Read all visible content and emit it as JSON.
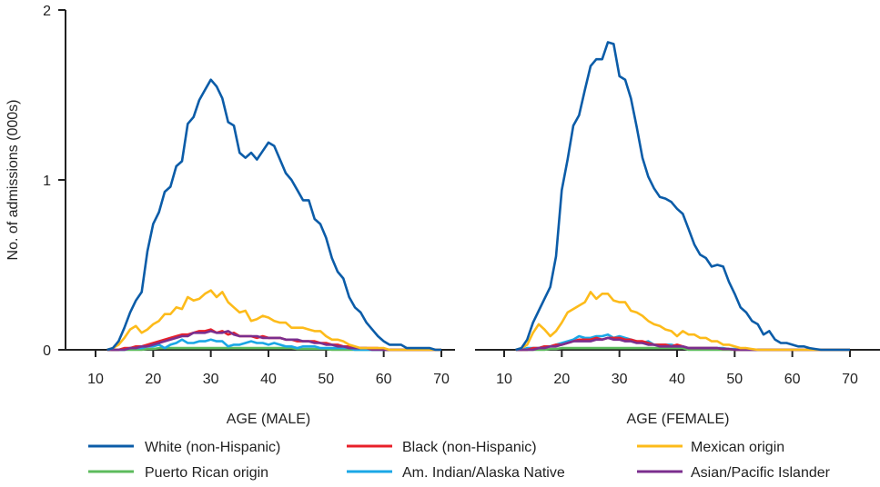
{
  "chart_data": [
    {
      "type": "line",
      "panel": "male",
      "xlabel": "AGE (MALE)",
      "ylabel": "No. of admissions (000s)",
      "xlim": [
        10,
        70
      ],
      "ylim": [
        0,
        2
      ],
      "xticks": [
        "10",
        "20",
        "30",
        "40",
        "50",
        "60",
        "70"
      ],
      "yticks": [
        "0",
        "1",
        "2"
      ],
      "grid": false,
      "x_start": 12,
      "series": [
        {
          "name": "Puerto Rican origin",
          "color": "#5cbb5c",
          "values": [
            0,
            0,
            0,
            0,
            0,
            0,
            0,
            0.005,
            0.005,
            0.01,
            0.01,
            0.01,
            0.01,
            0.01,
            0.01,
            0.01,
            0.01,
            0.01,
            0.01,
            0.01,
            0.01,
            0.01,
            0.01,
            0.01,
            0.01,
            0.01,
            0.01,
            0.01,
            0.01,
            0.01,
            0.01,
            0.01,
            0.01,
            0.005,
            0.005,
            0.005,
            0.005,
            0.005,
            0.005,
            0,
            0,
            0,
            0,
            0,
            0,
            0,
            0,
            0,
            0,
            0,
            0,
            0,
            0,
            0,
            0,
            0,
            0,
            0,
            0
          ]
        },
        {
          "name": "Am. Indian/Alaska Native",
          "color": "#1aa7e6",
          "values": [
            0,
            0,
            0,
            0,
            0.01,
            0.01,
            0.01,
            0.02,
            0.02,
            0.03,
            0.01,
            0.03,
            0.04,
            0.06,
            0.04,
            0.04,
            0.05,
            0.05,
            0.06,
            0.05,
            0.05,
            0.02,
            0.03,
            0.03,
            0.04,
            0.05,
            0.04,
            0.04,
            0.03,
            0.04,
            0.03,
            0.02,
            0.02,
            0.01,
            0.02,
            0.02,
            0.02,
            0.01,
            0.01,
            0.01,
            0.01,
            0.01,
            0.01,
            0,
            0,
            0,
            0,
            0,
            0,
            0,
            0,
            0,
            0,
            0,
            0,
            0,
            0,
            0,
            0
          ]
        },
        {
          "name": "Black (non-Hispanic)",
          "color": "#e8202a",
          "values": [
            0,
            0,
            0,
            0.01,
            0.01,
            0.02,
            0.02,
            0.03,
            0.04,
            0.05,
            0.06,
            0.07,
            0.08,
            0.09,
            0.09,
            0.1,
            0.11,
            0.11,
            0.12,
            0.1,
            0.11,
            0.09,
            0.1,
            0.08,
            0.08,
            0.08,
            0.07,
            0.08,
            0.07,
            0.07,
            0.07,
            0.06,
            0.06,
            0.05,
            0.05,
            0.05,
            0.05,
            0.04,
            0.04,
            0.03,
            0.03,
            0.02,
            0.02,
            0.01,
            0.01,
            0.01,
            0.01,
            0.01,
            0,
            0,
            0,
            0,
            0,
            0,
            0,
            0,
            0,
            0,
            0
          ]
        },
        {
          "name": "Asian/Pacific Islander",
          "color": "#7b2e8e",
          "values": [
            0,
            0,
            0,
            0,
            0.01,
            0.01,
            0.02,
            0.02,
            0.03,
            0.04,
            0.05,
            0.06,
            0.07,
            0.08,
            0.08,
            0.1,
            0.1,
            0.1,
            0.11,
            0.1,
            0.1,
            0.11,
            0.09,
            0.08,
            0.08,
            0.08,
            0.08,
            0.07,
            0.07,
            0.07,
            0.07,
            0.06,
            0.06,
            0.06,
            0.05,
            0.05,
            0.04,
            0.04,
            0.03,
            0.03,
            0.02,
            0.02,
            0.01,
            0.01,
            0.01,
            0.01,
            0,
            0,
            0,
            0,
            0,
            0,
            0,
            0,
            0,
            0,
            0,
            0,
            0
          ]
        },
        {
          "name": "Mexican origin",
          "color": "#fdbb1a",
          "values": [
            0,
            0.01,
            0.03,
            0.07,
            0.12,
            0.14,
            0.1,
            0.12,
            0.15,
            0.17,
            0.21,
            0.21,
            0.25,
            0.24,
            0.31,
            0.29,
            0.3,
            0.33,
            0.35,
            0.31,
            0.34,
            0.28,
            0.25,
            0.22,
            0.23,
            0.17,
            0.18,
            0.2,
            0.19,
            0.17,
            0.16,
            0.16,
            0.13,
            0.13,
            0.13,
            0.12,
            0.11,
            0.11,
            0.08,
            0.06,
            0.06,
            0.05,
            0.03,
            0.02,
            0.01,
            0.01,
            0.01,
            0.01,
            0.01,
            0,
            0,
            0,
            0,
            0,
            0,
            0,
            0,
            0,
            0
          ]
        },
        {
          "name": "White (non-Hispanic)",
          "color": "#0b5ca8",
          "values": [
            0,
            0.01,
            0.05,
            0.13,
            0.22,
            0.29,
            0.34,
            0.58,
            0.74,
            0.81,
            0.93,
            0.96,
            1.08,
            1.11,
            1.33,
            1.37,
            1.47,
            1.53,
            1.59,
            1.55,
            1.48,
            1.34,
            1.32,
            1.16,
            1.13,
            1.16,
            1.12,
            1.17,
            1.22,
            1.2,
            1.12,
            1.04,
            1.0,
            0.94,
            0.88,
            0.88,
            0.77,
            0.74,
            0.66,
            0.54,
            0.46,
            0.42,
            0.31,
            0.25,
            0.22,
            0.16,
            0.12,
            0.08,
            0.05,
            0.03,
            0.03,
            0.03,
            0.01,
            0.01,
            0.01,
            0.01,
            0.01,
            0,
            0
          ]
        }
      ]
    },
    {
      "type": "line",
      "panel": "female",
      "xlabel": "AGE (FEMALE)",
      "xlim": [
        10,
        70
      ],
      "ylim": [
        0,
        2
      ],
      "xticks": [
        "10",
        "20",
        "30",
        "40",
        "50",
        "60",
        "70"
      ],
      "grid": false,
      "x_start": 12,
      "series": [
        {
          "name": "Puerto Rican origin",
          "color": "#5cbb5c",
          "values": [
            0,
            0,
            0,
            0,
            0,
            0,
            0.005,
            0.005,
            0.01,
            0.01,
            0.01,
            0.01,
            0.01,
            0.01,
            0.01,
            0.01,
            0.01,
            0.01,
            0.01,
            0.01,
            0.01,
            0.01,
            0.01,
            0.01,
            0.01,
            0.01,
            0.01,
            0.01,
            0.01,
            0.01,
            0,
            0,
            0,
            0,
            0,
            0,
            0,
            0,
            0,
            0,
            0,
            0,
            0,
            0,
            0,
            0,
            0,
            0,
            0,
            0,
            0,
            0,
            0,
            0,
            0,
            0,
            0,
            0,
            0
          ]
        },
        {
          "name": "Am. Indian/Alaska Native",
          "color": "#1aa7e6",
          "values": [
            0,
            0,
            0.01,
            0.01,
            0.01,
            0.02,
            0.02,
            0.03,
            0.04,
            0.05,
            0.06,
            0.08,
            0.07,
            0.07,
            0.08,
            0.08,
            0.09,
            0.07,
            0.08,
            0.07,
            0.06,
            0.05,
            0.04,
            0.05,
            0.03,
            0.03,
            0.03,
            0.03,
            0.02,
            0.02,
            0.01,
            0.01,
            0.01,
            0.01,
            0.01,
            0.01,
            0.01,
            0.005,
            0.005,
            0,
            0,
            0,
            0,
            0,
            0,
            0,
            0,
            0,
            0,
            0,
            0,
            0,
            0,
            0,
            0,
            0,
            0,
            0,
            0
          ]
        },
        {
          "name": "Black (non-Hispanic)",
          "color": "#e8202a",
          "values": [
            0,
            0,
            0,
            0.01,
            0.01,
            0.02,
            0.02,
            0.03,
            0.03,
            0.04,
            0.05,
            0.06,
            0.06,
            0.06,
            0.07,
            0.06,
            0.07,
            0.07,
            0.07,
            0.06,
            0.06,
            0.05,
            0.05,
            0.04,
            0.03,
            0.03,
            0.03,
            0.02,
            0.03,
            0.02,
            0.01,
            0.01,
            0.01,
            0.01,
            0.01,
            0.01,
            0.005,
            0.005,
            0,
            0,
            0,
            0,
            0,
            0,
            0,
            0,
            0,
            0,
            0,
            0,
            0,
            0,
            0,
            0,
            0,
            0,
            0,
            0,
            0
          ]
        },
        {
          "name": "Asian/Pacific Islander",
          "color": "#7b2e8e",
          "values": [
            0,
            0,
            0,
            0,
            0.01,
            0.01,
            0.02,
            0.02,
            0.03,
            0.04,
            0.05,
            0.05,
            0.05,
            0.05,
            0.06,
            0.06,
            0.07,
            0.06,
            0.06,
            0.05,
            0.05,
            0.04,
            0.04,
            0.03,
            0.03,
            0.02,
            0.02,
            0.02,
            0.02,
            0.02,
            0.01,
            0.01,
            0.01,
            0.01,
            0.01,
            0.01,
            0.005,
            0.005,
            0,
            0,
            0,
            0,
            0,
            0,
            0,
            0,
            0,
            0,
            0,
            0,
            0,
            0,
            0,
            0,
            0,
            0,
            0,
            0,
            0
          ]
        },
        {
          "name": "Mexican origin",
          "color": "#fdbb1a",
          "values": [
            0,
            0.01,
            0.03,
            0.1,
            0.15,
            0.12,
            0.08,
            0.11,
            0.16,
            0.22,
            0.24,
            0.26,
            0.28,
            0.34,
            0.3,
            0.33,
            0.33,
            0.29,
            0.28,
            0.28,
            0.23,
            0.22,
            0.2,
            0.17,
            0.15,
            0.14,
            0.12,
            0.11,
            0.08,
            0.11,
            0.09,
            0.09,
            0.07,
            0.07,
            0.05,
            0.05,
            0.03,
            0.03,
            0.02,
            0.01,
            0.01,
            0.005,
            0,
            0,
            0,
            0,
            0,
            0,
            0,
            0,
            0,
            0,
            0,
            0,
            0,
            0,
            0,
            0,
            0
          ]
        },
        {
          "name": "White (non-Hispanic)",
          "color": "#0b5ca8",
          "values": [
            0,
            0.01,
            0.06,
            0.16,
            0.23,
            0.3,
            0.37,
            0.55,
            0.94,
            1.12,
            1.32,
            1.38,
            1.53,
            1.67,
            1.71,
            1.71,
            1.81,
            1.8,
            1.61,
            1.59,
            1.48,
            1.31,
            1.13,
            1.02,
            0.95,
            0.9,
            0.89,
            0.87,
            0.83,
            0.8,
            0.71,
            0.62,
            0.56,
            0.54,
            0.49,
            0.5,
            0.49,
            0.4,
            0.33,
            0.25,
            0.22,
            0.17,
            0.15,
            0.09,
            0.11,
            0.06,
            0.04,
            0.04,
            0.03,
            0.02,
            0.02,
            0.01,
            0.005,
            0,
            0,
            0,
            0,
            0,
            0
          ]
        }
      ]
    }
  ],
  "legend": {
    "placement": "bottom",
    "items": [
      {
        "label": "White (non-Hispanic)",
        "color": "#0b5ca8"
      },
      {
        "label": "Black (non-Hispanic)",
        "color": "#e8202a"
      },
      {
        "label": "Mexican origin",
        "color": "#fdbb1a"
      },
      {
        "label": "Puerto Rican origin",
        "color": "#5cbb5c"
      },
      {
        "label": "Am. Indian/Alaska Native",
        "color": "#1aa7e6"
      },
      {
        "label": "Asian/Pacific Islander",
        "color": "#7b2e8e"
      }
    ]
  }
}
